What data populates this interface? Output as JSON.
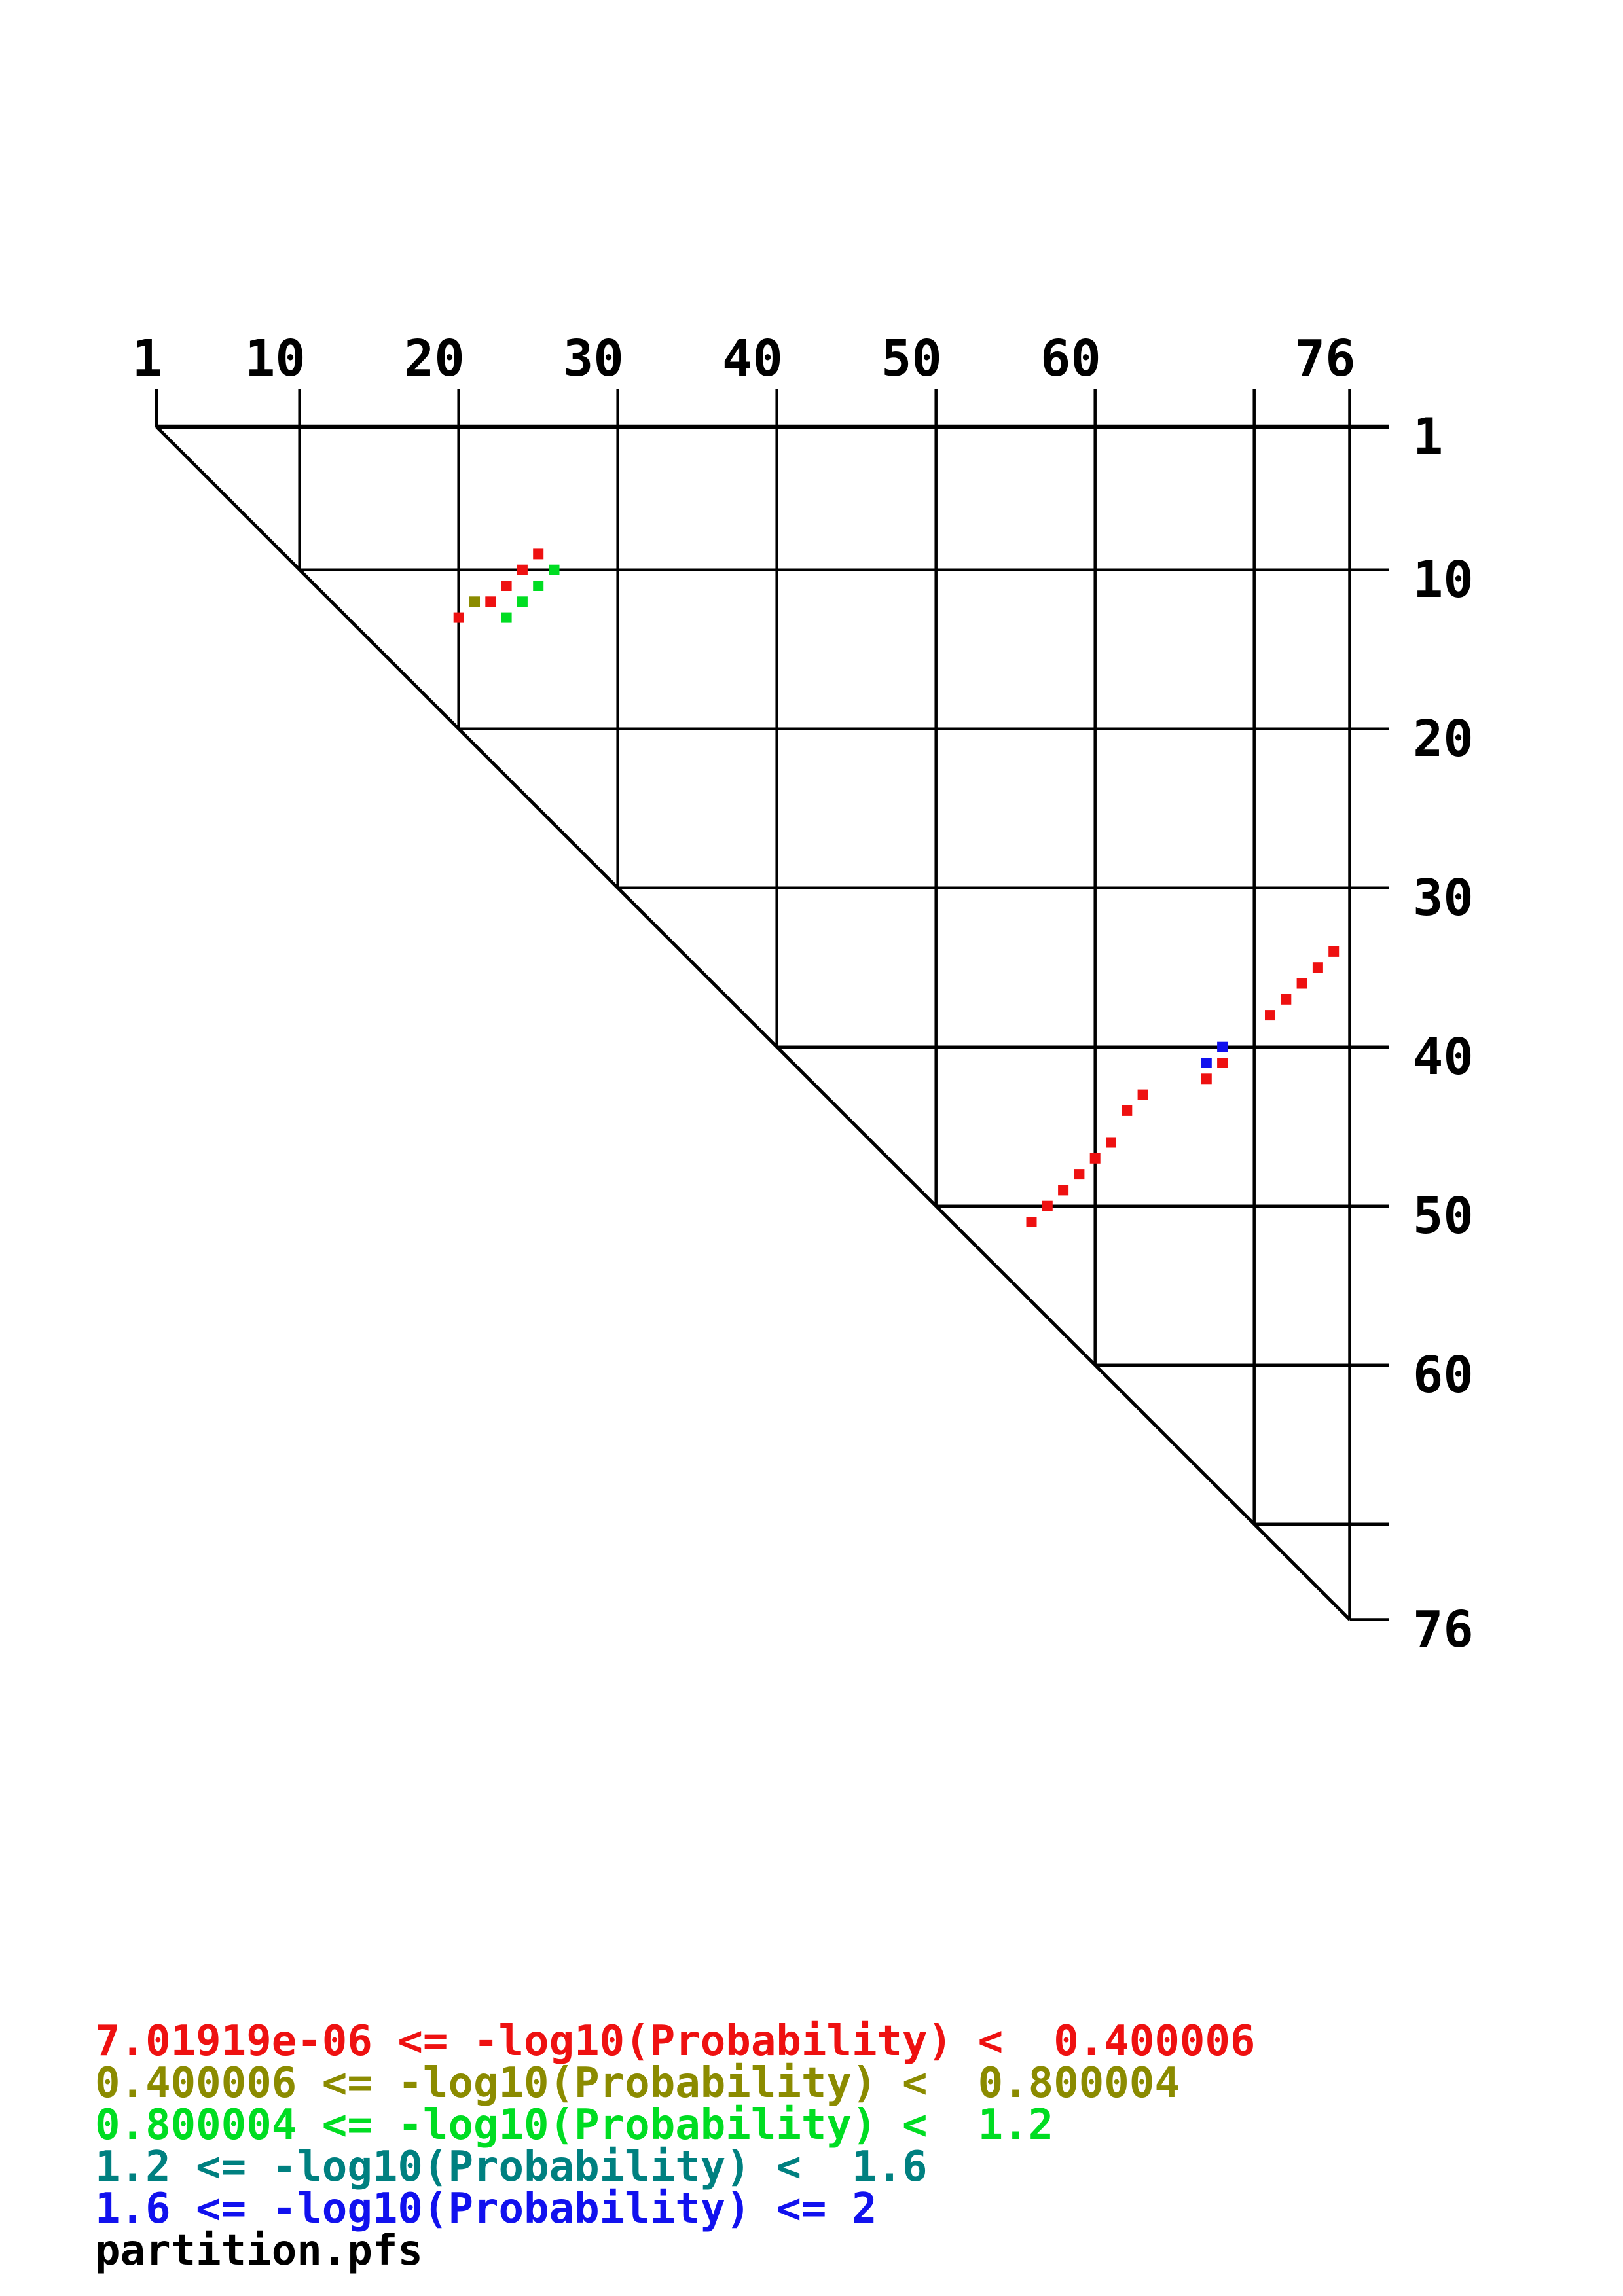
{
  "palette": {
    "red": "#ee1111",
    "olive": "#8b8b00",
    "green": "#00dd22",
    "teal": "#008080",
    "blue": "#1111ee",
    "black": "#000000"
  },
  "chart_data": {
    "type": "scatter",
    "variant": "rna-base-pair-probability-dot-plot",
    "title": "",
    "sequence_length": 76,
    "grid": "on",
    "x_axis": {
      "side": "top",
      "labels": [
        1,
        10,
        20,
        30,
        40,
        50,
        60,
        76
      ],
      "range": [
        1,
        76
      ]
    },
    "y_axis": {
      "side": "right",
      "labels": [
        1,
        10,
        20,
        30,
        40,
        50,
        60,
        76
      ],
      "range": [
        1,
        76
      ]
    },
    "grid_positions": [
      1,
      10,
      20,
      30,
      40,
      50,
      60,
      70,
      76
    ],
    "points": [
      {
        "i": 25,
        "j": 9,
        "bin": "red"
      },
      {
        "i": 24,
        "j": 10,
        "bin": "red"
      },
      {
        "i": 26,
        "j": 10,
        "bin": "green"
      },
      {
        "i": 23,
        "j": 11,
        "bin": "red"
      },
      {
        "i": 25,
        "j": 11,
        "bin": "green"
      },
      {
        "i": 21,
        "j": 12,
        "bin": "olive"
      },
      {
        "i": 22,
        "j": 12,
        "bin": "red"
      },
      {
        "i": 24,
        "j": 12,
        "bin": "green"
      },
      {
        "i": 20,
        "j": 13,
        "bin": "red"
      },
      {
        "i": 23,
        "j": 13,
        "bin": "green"
      },
      {
        "i": 75,
        "j": 34,
        "bin": "red"
      },
      {
        "i": 74,
        "j": 35,
        "bin": "red"
      },
      {
        "i": 73,
        "j": 36,
        "bin": "red"
      },
      {
        "i": 72,
        "j": 37,
        "bin": "red"
      },
      {
        "i": 71,
        "j": 38,
        "bin": "red"
      },
      {
        "i": 68,
        "j": 40,
        "bin": "blue"
      },
      {
        "i": 67,
        "j": 41,
        "bin": "blue"
      },
      {
        "i": 68,
        "j": 41,
        "bin": "red"
      },
      {
        "i": 67,
        "j": 42,
        "bin": "red"
      },
      {
        "i": 63,
        "j": 43,
        "bin": "red"
      },
      {
        "i": 62,
        "j": 44,
        "bin": "red"
      },
      {
        "i": 61,
        "j": 46,
        "bin": "red"
      },
      {
        "i": 60,
        "j": 47,
        "bin": "red"
      },
      {
        "i": 59,
        "j": 48,
        "bin": "red"
      },
      {
        "i": 58,
        "j": 49,
        "bin": "red"
      },
      {
        "i": 57,
        "j": 50,
        "bin": "red"
      },
      {
        "i": 56,
        "j": 51,
        "bin": "red"
      }
    ],
    "legend_position": "bottom-left",
    "legend": [
      {
        "bin": "red",
        "text": "7.01919e-06 <= -log10(Probability) <  0.400006"
      },
      {
        "bin": "olive",
        "text": "0.400006 <= -log10(Probability) <  0.800004"
      },
      {
        "bin": "green",
        "text": "0.800004 <= -log10(Probability) <  1.2"
      },
      {
        "bin": "teal",
        "text": "1.2 <= -log10(Probability) <  1.6"
      },
      {
        "bin": "blue",
        "text": "1.6 <= -log10(Probability) <= 2"
      }
    ],
    "filename": "partition.pfs"
  }
}
